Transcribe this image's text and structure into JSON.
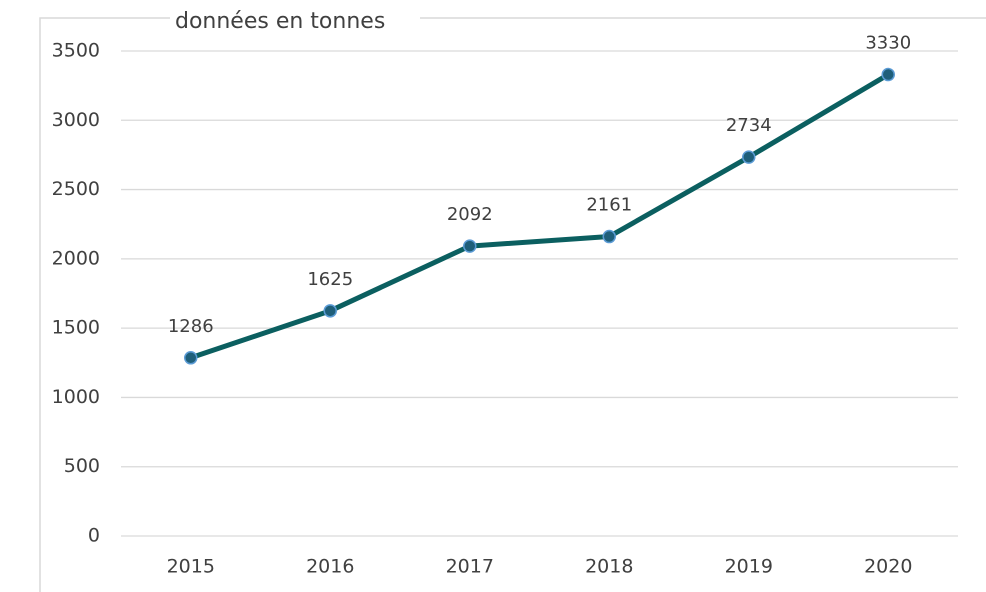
{
  "chart_data": {
    "type": "line",
    "title": "données en tonnes",
    "categories": [
      "2015",
      "2016",
      "2017",
      "2018",
      "2019",
      "2020"
    ],
    "series": [
      {
        "name": "données",
        "color": "#0b5f60",
        "values": [
          1286,
          1625,
          2092,
          2161,
          2734,
          3330
        ]
      }
    ],
    "ylim": [
      0,
      3500
    ],
    "yticks": [
      0,
      500,
      1000,
      1500,
      2000,
      2500,
      3000,
      3500
    ],
    "grid": true
  }
}
